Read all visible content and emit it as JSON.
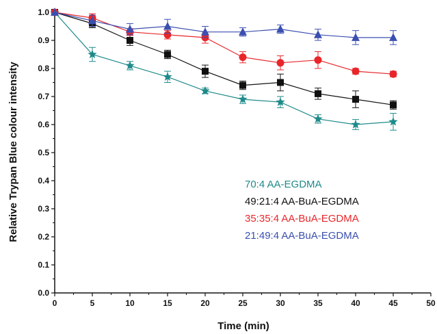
{
  "chart_data": {
    "type": "line",
    "title": "",
    "xlabel": "Time (min)",
    "ylabel": "Relative Trypan Blue colour intensity",
    "xlim": [
      0,
      50
    ],
    "ylim": [
      0.0,
      1.0
    ],
    "x_ticks": [
      "0",
      "5",
      "10",
      "15",
      "20",
      "25",
      "30",
      "35",
      "40",
      "45",
      "50"
    ],
    "y_ticks": [
      "0.0",
      "0.1",
      "0.2",
      "0.3",
      "0.4",
      "0.5",
      "0.6",
      "0.7",
      "0.8",
      "0.9",
      "1.0"
    ],
    "grid": false,
    "legend_position": "center-right",
    "series": [
      {
        "name": "70:4 AA-EGDMA",
        "color": "#1f8a8a",
        "marker": "star",
        "x": [
          0,
          5,
          10,
          15,
          20,
          25,
          30,
          35,
          40,
          45
        ],
        "y": [
          1.0,
          0.85,
          0.81,
          0.77,
          0.72,
          0.69,
          0.68,
          0.62,
          0.6,
          0.61
        ],
        "err": [
          0,
          0.025,
          0.015,
          0.02,
          0.01,
          0.015,
          0.02,
          0.015,
          0.018,
          0.03
        ]
      },
      {
        "name": "49:21:4 AA-BuA-EGDMA",
        "color": "#111111",
        "marker": "square",
        "x": [
          0,
          5,
          10,
          15,
          20,
          25,
          30,
          35,
          40,
          45
        ],
        "y": [
          1.0,
          0.96,
          0.9,
          0.85,
          0.79,
          0.74,
          0.75,
          0.71,
          0.69,
          0.67
        ],
        "err": [
          0,
          0.015,
          0.018,
          0.015,
          0.022,
          0.015,
          0.03,
          0.02,
          0.03,
          0.015
        ]
      },
      {
        "name": "35:35:4 AA-BuA-EGDMA",
        "color": "#e8262a",
        "marker": "circle",
        "x": [
          0,
          5,
          10,
          15,
          20,
          25,
          30,
          35,
          40,
          45
        ],
        "y": [
          1.0,
          0.98,
          0.93,
          0.92,
          0.91,
          0.84,
          0.82,
          0.83,
          0.79,
          0.78
        ],
        "err": [
          0,
          0.015,
          0.012,
          0.015,
          0.02,
          0.02,
          0.025,
          0.03,
          0.01,
          0.01
        ]
      },
      {
        "name": "21:49:4 AA-BuA-EGDMA",
        "color": "#3b4fb0",
        "marker": "triangle",
        "x": [
          0,
          5,
          10,
          15,
          20,
          25,
          30,
          35,
          40,
          45
        ],
        "y": [
          1.0,
          0.97,
          0.94,
          0.95,
          0.93,
          0.93,
          0.94,
          0.92,
          0.91,
          0.91
        ],
        "err": [
          0,
          0.02,
          0.02,
          0.025,
          0.02,
          0.015,
          0.015,
          0.02,
          0.025,
          0.025
        ]
      }
    ]
  }
}
